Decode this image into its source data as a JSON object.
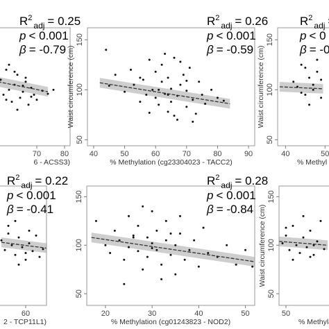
{
  "chart_data": [
    {
      "type": "scatter",
      "xlim": [
        22,
        82
      ],
      "ylim": [
        44,
        162
      ],
      "xticks": [
        70,
        80
      ],
      "yticks": [],
      "x_label": "6 - ACSS3)",
      "x": [
        57,
        58,
        59,
        60,
        61,
        62,
        63,
        64,
        65,
        66,
        67,
        68,
        69,
        70,
        72,
        74,
        76,
        60,
        63,
        66,
        59,
        62,
        65,
        68
      ],
      "values": [
        110,
        95,
        120,
        100,
        88,
        105,
        115,
        92,
        98,
        108,
        85,
        102,
        95,
        90,
        99,
        96,
        100,
        125,
        80,
        112,
        90,
        118,
        104,
        93
      ],
      "fit": {
        "x": [
          56,
          74
        ],
        "y": [
          108,
          98
        ]
      },
      "stats": {
        "r": "R",
        "sup": "2",
        "sub": "adj",
        "r2": "= 0.25",
        "p": "p",
        "pval": "< 0.001",
        "beta": "β",
        "bval": "= -0.79"
      }
    },
    {
      "type": "scatter",
      "xlim": [
        38,
        92
      ],
      "ylim": [
        44,
        162
      ],
      "xticks": [
        40,
        50,
        60,
        70,
        80,
        90
      ],
      "yticks": [
        50,
        100,
        150
      ],
      "x_label": "% Methylation (cg23304023 - TACC2)",
      "y_label": "Waist circumference (cm)",
      "x": [
        44,
        47,
        50,
        52,
        53,
        55,
        56,
        57,
        58,
        59,
        60,
        60,
        61,
        62,
        62,
        63,
        64,
        64,
        65,
        65,
        66,
        67,
        67,
        68,
        69,
        70,
        70,
        71,
        72,
        73,
        74,
        75,
        76,
        78,
        80,
        82,
        45,
        58,
        63,
        68,
        72,
        55,
        66,
        61,
        70,
        64
      ],
      "values": [
        140,
        115,
        98,
        120,
        105,
        88,
        110,
        95,
        130,
        100,
        92,
        118,
        85,
        108,
        125,
        96,
        78,
        112,
        101,
        88,
        132,
        94,
        70,
        105,
        115,
        83,
        99,
        122,
        90,
        76,
        108,
        95,
        86,
        100,
        92,
        89,
        104,
        77,
        136,
        128,
        68,
        112,
        74,
        100,
        109,
        95
      ],
      "fit": {
        "x": [
          42,
          84
        ],
        "y": [
          107,
          86
        ]
      },
      "stats": {
        "r": "R",
        "sup": "2",
        "sub": "adj",
        "r2": "= 0.26",
        "p": "p",
        "pval": "< 0.001",
        "beta": "β",
        "bval": "= -0.59"
      }
    },
    {
      "type": "scatter",
      "xlim": [
        38,
        80
      ],
      "ylim": [
        44,
        162
      ],
      "xticks": [
        40,
        50
      ],
      "yticks": [
        50,
        100,
        150
      ],
      "x_label": "% Methyl",
      "y_label": "Waist circumference (cm)",
      "x": [
        42,
        44,
        45,
        46,
        47,
        48,
        49,
        43,
        46,
        48,
        44,
        47,
        49,
        45
      ],
      "values": [
        108,
        125,
        95,
        112,
        100,
        118,
        92,
        103,
        85,
        130,
        97,
        105,
        110,
        122
      ],
      "fit": {
        "x": [
          38.5,
          49.5
        ],
        "y": [
          103,
          101
        ]
      },
      "stats": {
        "r": "R",
        "sup": "2",
        "sub": "adj",
        "r2": "= 0",
        "p": "p",
        "pval": "< 0",
        "beta": "β",
        "bval": "= -0."
      }
    },
    {
      "type": "scatter",
      "xlim": [
        20,
        66
      ],
      "ylim": [
        38,
        161
      ],
      "xticks": [
        60
      ],
      "yticks": [],
      "x_label": "2 - TCP11L1)",
      "x": [
        53,
        54,
        55,
        56,
        57,
        58,
        59,
        60,
        61,
        62,
        63,
        64,
        65,
        55,
        58,
        61,
        57,
        60
      ],
      "values": [
        105,
        95,
        112,
        100,
        90,
        108,
        98,
        85,
        102,
        94,
        110,
        88,
        96,
        120,
        80,
        115,
        125,
        92
      ],
      "fit": {
        "x": [
          53,
          66
        ],
        "y": [
          103,
          97
        ]
      },
      "stats": {
        "r": "R",
        "sup": "2",
        "sub": "adj",
        "r2": "= 0.22",
        "p": "p",
        "pval": "< 0.001",
        "beta": "β",
        "bval": "= -0.41"
      }
    },
    {
      "type": "scatter",
      "xlim": [
        16,
        52
      ],
      "ylim": [
        38,
        161
      ],
      "xticks": [
        20,
        30,
        40,
        50
      ],
      "yticks": [
        50,
        100,
        150
      ],
      "x_label": "% Methylation (cg01243823 - NOD2)",
      "x": [
        18,
        20,
        21,
        22,
        23,
        24,
        25,
        25,
        26,
        27,
        27,
        28,
        29,
        29,
        30,
        30,
        31,
        31,
        32,
        33,
        33,
        34,
        35,
        35,
        36,
        37,
        38,
        39,
        40,
        41,
        42,
        44,
        46,
        48,
        50,
        51.5,
        24,
        28,
        32,
        36,
        26,
        30,
        34
      ],
      "values": [
        125,
        100,
        92,
        115,
        105,
        85,
        130,
        98,
        110,
        94,
        120,
        75,
        108,
        88,
        102,
        135,
        95,
        115,
        80,
        105,
        125,
        90,
        100,
        70,
        112,
        85,
        95,
        105,
        78,
        118,
        92,
        88,
        100,
        80,
        95,
        78,
        60,
        140,
        65,
        130,
        108,
        97,
        112
      ],
      "fit": {
        "x": [
          17,
          52
        ],
        "y": [
          108,
          83
        ]
      },
      "stats": {
        "r": "R",
        "sup": "2",
        "sub": "adj",
        "r2": "= 0.28",
        "p": "p",
        "pval": "< 0.001",
        "beta": "β",
        "bval": "= -0.84"
      }
    },
    {
      "type": "scatter",
      "xlim": [
        48,
        90
      ],
      "ylim": [
        38,
        161
      ],
      "xticks": [
        50
      ],
      "yticks": [
        50,
        100,
        150
      ],
      "x_label": "% Methylation",
      "y_label": "Waist circumference (cm)",
      "x": [
        49,
        50,
        51,
        52,
        53,
        54,
        55,
        56,
        57,
        58,
        59,
        60,
        61,
        52,
        55,
        58,
        50,
        57
      ],
      "values": [
        102,
        110,
        95,
        120,
        100,
        92,
        108,
        98,
        115,
        90,
        104,
        125,
        96,
        85,
        130,
        100,
        118,
        88
      ],
      "fit": {
        "x": [
          48,
          62
        ],
        "y": [
          104,
          100
        ]
      }
    }
  ]
}
